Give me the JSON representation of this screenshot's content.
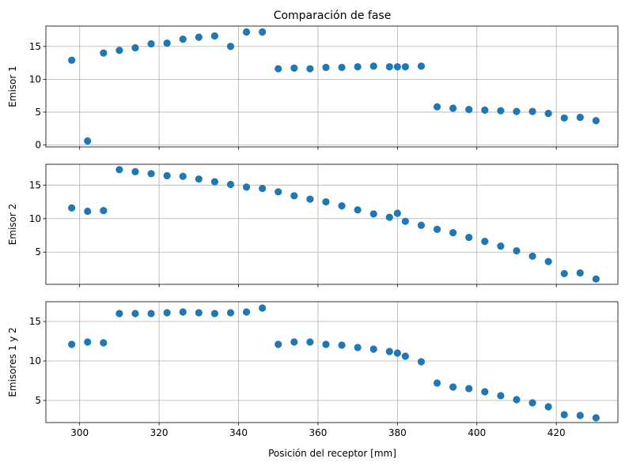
{
  "chart_data": {
    "title": "Comparación de fase",
    "xlabel": "Posición del receptor [mm]",
    "xlim": [
      291.5,
      435.5
    ],
    "x_ticks": [
      300,
      320,
      340,
      360,
      380,
      400,
      420
    ],
    "grid": true,
    "marker_color": "#1f77b4",
    "subplots": [
      {
        "type": "scatter",
        "ylabel": "Emisor 1",
        "ylim": [
          -0.3,
          18.1
        ],
        "y_ticks": [
          0,
          5,
          10,
          15
        ],
        "points": [
          [
            298,
            12.9
          ],
          [
            302,
            0.6
          ],
          [
            306,
            14.0
          ],
          [
            310,
            14.4
          ],
          [
            314,
            14.8
          ],
          [
            318,
            15.4
          ],
          [
            322,
            15.5
          ],
          [
            326,
            16.1
          ],
          [
            330,
            16.4
          ],
          [
            334,
            16.6
          ],
          [
            338,
            15.0
          ],
          [
            342,
            17.2
          ],
          [
            346,
            17.2
          ],
          [
            350,
            11.6
          ],
          [
            354,
            11.7
          ],
          [
            358,
            11.6
          ],
          [
            362,
            11.8
          ],
          [
            366,
            11.8
          ],
          [
            370,
            11.9
          ],
          [
            374,
            12.0
          ],
          [
            378,
            11.9
          ],
          [
            380,
            11.9
          ],
          [
            382,
            11.9
          ],
          [
            386,
            12.0
          ],
          [
            390,
            5.8
          ],
          [
            394,
            5.6
          ],
          [
            398,
            5.4
          ],
          [
            402,
            5.3
          ],
          [
            406,
            5.2
          ],
          [
            410,
            5.1
          ],
          [
            414,
            5.1
          ],
          [
            418,
            4.8
          ],
          [
            422,
            4.1
          ],
          [
            426,
            4.2
          ],
          [
            430,
            3.7
          ]
        ]
      },
      {
        "type": "scatter",
        "ylabel": "Emisor 2",
        "ylim": [
          0.2,
          18.1
        ],
        "y_ticks": [
          5,
          10,
          15
        ],
        "points": [
          [
            298,
            11.6
          ],
          [
            302,
            11.1
          ],
          [
            306,
            11.2
          ],
          [
            310,
            17.3
          ],
          [
            314,
            17.0
          ],
          [
            318,
            16.7
          ],
          [
            322,
            16.4
          ],
          [
            326,
            16.3
          ],
          [
            330,
            15.9
          ],
          [
            334,
            15.5
          ],
          [
            338,
            15.1
          ],
          [
            342,
            14.7
          ],
          [
            346,
            14.5
          ],
          [
            350,
            14.0
          ],
          [
            354,
            13.4
          ],
          [
            358,
            12.9
          ],
          [
            362,
            12.5
          ],
          [
            366,
            11.9
          ],
          [
            370,
            11.3
          ],
          [
            374,
            10.7
          ],
          [
            378,
            10.2
          ],
          [
            380,
            10.8
          ],
          [
            382,
            9.6
          ],
          [
            386,
            9.0
          ],
          [
            390,
            8.4
          ],
          [
            394,
            7.9
          ],
          [
            398,
            7.2
          ],
          [
            402,
            6.6
          ],
          [
            406,
            5.9
          ],
          [
            410,
            5.2
          ],
          [
            414,
            4.4
          ],
          [
            418,
            3.6
          ],
          [
            422,
            1.8
          ],
          [
            426,
            1.9
          ],
          [
            430,
            1.0
          ]
        ]
      },
      {
        "type": "scatter",
        "ylabel": "Emisores 1 y 2",
        "ylim": [
          2.2,
          17.5
        ],
        "y_ticks": [
          5,
          10,
          15
        ],
        "points": [
          [
            298,
            12.1
          ],
          [
            302,
            12.4
          ],
          [
            306,
            12.3
          ],
          [
            310,
            16.0
          ],
          [
            314,
            16.0
          ],
          [
            318,
            16.0
          ],
          [
            322,
            16.1
          ],
          [
            326,
            16.2
          ],
          [
            330,
            16.1
          ],
          [
            334,
            16.0
          ],
          [
            338,
            16.1
          ],
          [
            342,
            16.2
          ],
          [
            346,
            16.7
          ],
          [
            350,
            12.1
          ],
          [
            354,
            12.4
          ],
          [
            358,
            12.4
          ],
          [
            362,
            12.1
          ],
          [
            366,
            12.0
          ],
          [
            370,
            11.7
          ],
          [
            374,
            11.5
          ],
          [
            378,
            11.2
          ],
          [
            380,
            11.0
          ],
          [
            382,
            10.6
          ],
          [
            386,
            9.9
          ],
          [
            390,
            7.2
          ],
          [
            394,
            6.7
          ],
          [
            398,
            6.5
          ],
          [
            402,
            6.1
          ],
          [
            406,
            5.6
          ],
          [
            410,
            5.1
          ],
          [
            414,
            4.7
          ],
          [
            418,
            4.2
          ],
          [
            422,
            3.2
          ],
          [
            426,
            3.1
          ],
          [
            430,
            2.8
          ]
        ]
      }
    ]
  }
}
